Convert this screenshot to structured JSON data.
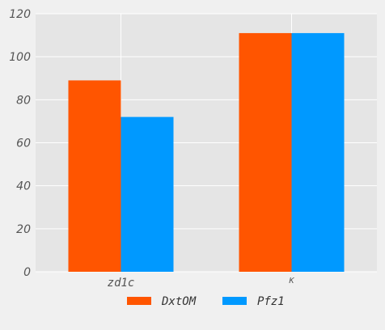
{
  "chart_data": {
    "type": "bar",
    "categories": [
      "zd1c",
      "K"
    ],
    "series": [
      {
        "name": "DxtOM",
        "values": [
          89,
          111
        ],
        "color": "#ff5500"
      },
      {
        "name": "Pfz1",
        "values": [
          72,
          111
        ],
        "color": "#0099ff"
      }
    ],
    "ylim": [
      0,
      120
    ],
    "yticks": [
      0,
      20,
      40,
      60,
      80,
      100,
      120
    ],
    "grid": true,
    "legend_position": "bottom-center",
    "plot_background": "#e5e5e5",
    "page_background": "#f0f0f0"
  }
}
